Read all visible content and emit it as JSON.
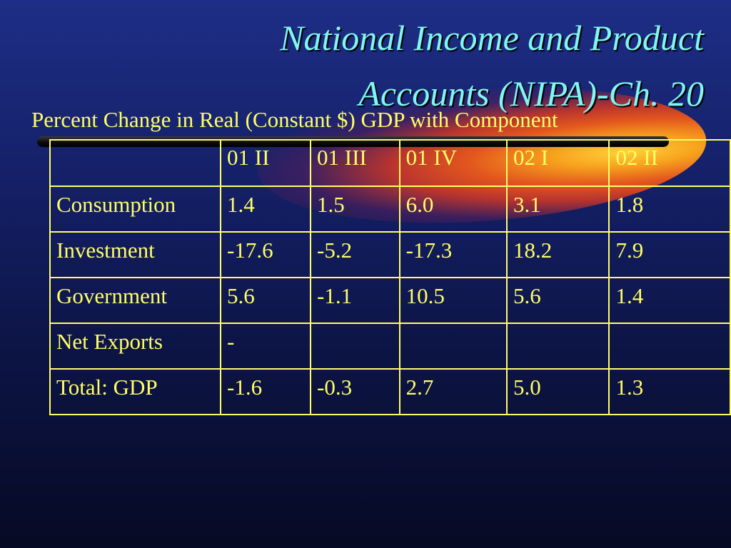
{
  "slide": {
    "title_line1": "National Income and Product",
    "title_line2": "Accounts (NIPA)-Ch. 20",
    "subtitle": "Percent Change in Real (Constant $) GDP with Component"
  },
  "table": {
    "columns": [
      "",
      "01 II",
      "01 III",
      "01 IV",
      "02 I",
      "02 II"
    ],
    "rows": [
      {
        "label": "Consumption",
        "values": [
          "1.4",
          "1.5",
          "6.0",
          "3.1",
          "1.8"
        ]
      },
      {
        "label": "Investment",
        "values": [
          "-17.6",
          "-5.2",
          "-17.3",
          "18.2",
          "7.9"
        ]
      },
      {
        "label": "Government",
        "values": [
          "5.6",
          "-1.1",
          "10.5",
          "5.6",
          "1.4"
        ]
      },
      {
        "label": "Net Exports",
        "values": [
          "-",
          "",
          "",
          "",
          ""
        ]
      },
      {
        "label": "Total: GDP",
        "values": [
          "-1.6",
          "-0.3",
          "2.7",
          "5.0",
          "1.3"
        ]
      }
    ]
  }
}
